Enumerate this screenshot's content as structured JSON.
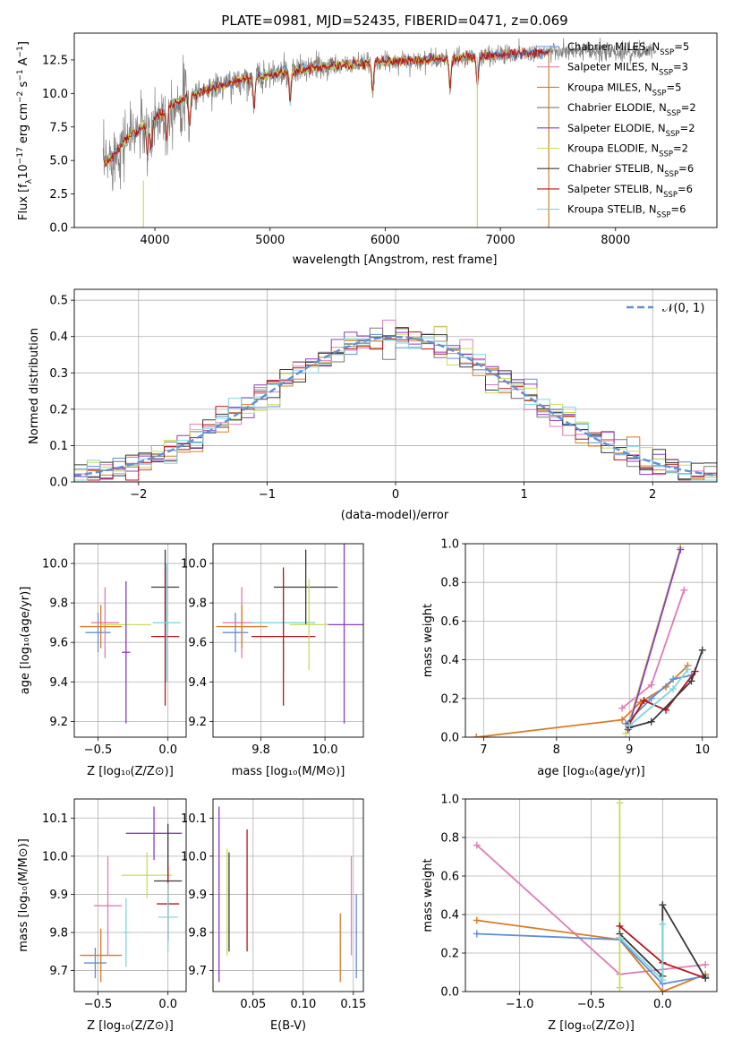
{
  "colors": {
    "chabrier_miles": "#5f8fd6",
    "salpeter_miles": "#e07cb8",
    "kroupa_miles": "#d97b27",
    "chabrier_elodie": "#7a7a7a",
    "salpeter_elodie": "#8e3bc3",
    "kroupa_elodie": "#c8dc5a",
    "chabrier_stelib": "#3a3a3a",
    "salpeter_stelib": "#b3171c",
    "kroupa_stelib": "#7fd6dd",
    "normal": "#5f8fd6",
    "grid": "#b0b0b0"
  },
  "chart_data": [
    {
      "id": "spectrum",
      "type": "line",
      "title": "PLATE=0981, MJD=52435, FIBERID=0471, z=0.069",
      "xlabel": "wavelength [Angstrom, rest frame]",
      "ylabel": "Flux [f_λ 10^-17 erg cm^-2 s^-1 A^-1]",
      "xlim": [
        3300,
        8880
      ],
      "ylim": [
        0,
        14.5
      ],
      "xticks": [
        "4000",
        "5000",
        "6000",
        "7000",
        "8000"
      ],
      "yticks": [
        "0.0",
        "2.5",
        "5.0",
        "7.5",
        "10.0",
        "12.5"
      ],
      "grid": false,
      "legend_position": "top-right",
      "legend": [
        {
          "name": "Chabrier MILES",
          "n": "5"
        },
        {
          "name": "Salpeter MILES",
          "n": "3"
        },
        {
          "name": "Kroupa MILES",
          "n": "5"
        },
        {
          "name": "Chabrier ELODIE",
          "n": "2"
        },
        {
          "name": "Salpeter ELODIE",
          "n": "2"
        },
        {
          "name": "Kroupa ELODIE",
          "n": "2"
        },
        {
          "name": "Chabrier STELIB",
          "n": "6"
        },
        {
          "name": "Salpeter STELIB",
          "n": "6"
        },
        {
          "name": "Kroupa STELIB",
          "n": "6"
        }
      ],
      "continuum": {
        "x": [
          3550,
          3650,
          3750,
          3850,
          3950,
          4100,
          4300,
          4500,
          4800,
          5000,
          5300,
          5600,
          5900,
          6200,
          6500,
          6800,
          7000,
          7300,
          7420
        ],
        "y": [
          4.6,
          5.5,
          6.6,
          7.3,
          7.7,
          8.9,
          9.8,
          10.4,
          11.1,
          11.4,
          11.8,
          12.1,
          12.3,
          12.45,
          12.55,
          12.75,
          12.9,
          13.05,
          13.1
        ]
      },
      "absorption_features": [
        3934,
        3969,
        4102,
        4300,
        4861,
        5175,
        5890,
        6563,
        6800
      ],
      "data_extends_to": 8350
    },
    {
      "id": "residuals",
      "type": "line",
      "xlabel": "(data-model)/error",
      "ylabel": "Normed distribution",
      "xlim": [
        -2.5,
        2.5
      ],
      "ylim": [
        0,
        0.53
      ],
      "xticks": [
        "−2",
        "−1",
        "0",
        "1",
        "2"
      ],
      "yticks": [
        "0.0",
        "0.1",
        "0.2",
        "0.3",
        "0.4",
        "0.5"
      ],
      "grid": true,
      "legend_position": "top-right",
      "legend": [
        {
          "name": "𝒩(0, 1)"
        }
      ],
      "bin_width": 0.1,
      "histogram_envelope": {
        "x": [
          -2.5,
          -2.0,
          -1.5,
          -1.0,
          -0.5,
          0.0,
          0.5,
          1.0,
          1.5,
          2.0,
          2.5
        ],
        "y": [
          0.03,
          0.05,
          0.13,
          0.24,
          0.35,
          0.4,
          0.35,
          0.24,
          0.13,
          0.05,
          0.03
        ]
      }
    },
    {
      "id": "z-age",
      "type": "scatter",
      "xlabel": "Z [log₁₀(Z/Z⊙)]",
      "ylabel": "age  [log₁₀(age/yr)]",
      "xlim": [
        -0.67,
        0.13
      ],
      "ylim": [
        9.12,
        10.1
      ],
      "xticks": [
        "−0.5",
        "0.0"
      ],
      "yticks": [
        "9.2",
        "9.4",
        "9.6",
        "9.8",
        "10.0"
      ],
      "grid": true,
      "points": [
        {
          "model": "chabrier_miles",
          "x": -0.5,
          "y": 9.65,
          "xerr": 0.09,
          "yerr": 0.1
        },
        {
          "model": "salpeter_miles",
          "x": -0.45,
          "y": 9.7,
          "xerr": 0.1,
          "yerr": 0.18
        },
        {
          "model": "kroupa_miles",
          "x": -0.48,
          "y": 9.68,
          "xerr": 0.15,
          "yerr": 0.11
        },
        {
          "model": "kroupa_elodie",
          "x": -0.3,
          "y": 9.69,
          "xerr": 0.18,
          "yerr": 0.12
        },
        {
          "model": "salpeter_elodie",
          "x": -0.3,
          "y": 9.55,
          "xerr": 0.03,
          "yerr": 0.36
        },
        {
          "model": "chabrier_stelib",
          "x": -0.02,
          "y": 9.88,
          "xerr": 0.1,
          "yerr": 0.19
        },
        {
          "model": "salpeter_stelib",
          "x": -0.02,
          "y": 9.63,
          "xerr": 0.1,
          "yerr": 0.35
        },
        {
          "model": "kroupa_stelib",
          "x": -0.01,
          "y": 9.7,
          "xerr": 0.1,
          "yerr": 0.3
        }
      ]
    },
    {
      "id": "mass-age",
      "type": "scatter",
      "xlabel": "mass [log₁₀(M/M⊙)]",
      "ylabel": "",
      "xlim": [
        9.65,
        10.12
      ],
      "ylim": [
        9.12,
        10.1
      ],
      "xticks": [
        "9.8",
        "10.0"
      ],
      "yticks": [
        "9.2",
        "9.4",
        "9.6",
        "9.8",
        "10.0"
      ],
      "grid": true,
      "points": [
        {
          "model": "chabrier_miles",
          "x": 9.72,
          "y": 9.65,
          "xerr": 0.04,
          "yerr": 0.1
        },
        {
          "model": "salpeter_miles",
          "x": 9.74,
          "y": 9.7,
          "xerr": 0.06,
          "yerr": 0.18
        },
        {
          "model": "kroupa_miles",
          "x": 9.74,
          "y": 9.68,
          "xerr": 0.08,
          "yerr": 0.11
        },
        {
          "model": "kroupa_stelib",
          "x": 9.87,
          "y": 9.7,
          "xerr": 0.1,
          "yerr": 0.25
        },
        {
          "model": "chabrier_stelib",
          "x": 9.94,
          "y": 9.88,
          "xerr": 0.1,
          "yerr": 0.19
        },
        {
          "model": "salpeter_stelib",
          "x": 9.87,
          "y": 9.63,
          "xerr": 0.1,
          "yerr": 0.35
        },
        {
          "model": "salpeter_elodie",
          "x": 10.06,
          "y": 9.69,
          "xerr": 0.06,
          "yerr": 0.5
        },
        {
          "model": "kroupa_elodie",
          "x": 9.95,
          "y": 9.69,
          "xerr": 0.06,
          "yerr": 0.23
        }
      ]
    },
    {
      "id": "age-weight",
      "type": "line",
      "xlabel": "age  [log₁₀(age/yr)]",
      "ylabel": "mass weight",
      "xlim": [
        6.75,
        10.2
      ],
      "ylim": [
        0,
        1.0
      ],
      "xticks": [
        "7",
        "8",
        "9",
        "10"
      ],
      "yticks": [
        "0.0",
        "0.2",
        "0.4",
        "0.6",
        "0.8",
        "1.0"
      ],
      "grid": true,
      "series": [
        {
          "model": "kroupa_miles",
          "x": [
            6.9,
            8.9,
            9.15,
            9.5,
            9.8
          ],
          "y": [
            0.0,
            0.09,
            0.18,
            0.26,
            0.37
          ]
        },
        {
          "model": "salpeter_miles",
          "x": [
            8.9,
            9.3,
            9.75
          ],
          "y": [
            0.15,
            0.27,
            0.76
          ]
        },
        {
          "model": "kroupa_elodie",
          "x": [
            8.95,
            9.7
          ],
          "y": [
            0.02,
            0.98
          ]
        },
        {
          "model": "salpeter_elodie",
          "x": [
            8.98,
            9.7
          ],
          "y": [
            0.04,
            0.97
          ]
        },
        {
          "model": "chabrier_miles",
          "x": [
            8.95,
            9.3,
            9.6,
            9.85
          ],
          "y": [
            0.07,
            0.2,
            0.3,
            0.32
          ]
        },
        {
          "model": "salpeter_stelib",
          "x": [
            9.0,
            9.2,
            9.5,
            9.9
          ],
          "y": [
            0.07,
            0.19,
            0.14,
            0.34
          ]
        },
        {
          "model": "chabrier_stelib",
          "x": [
            9.0,
            9.3,
            9.85,
            10.0
          ],
          "y": [
            0.05,
            0.08,
            0.29,
            0.45
          ]
        },
        {
          "model": "kroupa_stelib",
          "x": [
            9.0,
            9.6,
            9.8
          ],
          "y": [
            0.06,
            0.25,
            0.35
          ]
        }
      ]
    },
    {
      "id": "z-mass",
      "type": "scatter",
      "xlabel": "Z [log₁₀(Z/Z⊙)]",
      "ylabel": "mass [log₁₀(M/M⊙)]",
      "xlim": [
        -0.67,
        0.13
      ],
      "ylim": [
        9.645,
        10.15
      ],
      "xticks": [
        "−0.5",
        "0.0"
      ],
      "yticks": [
        "9.7",
        "9.8",
        "9.9",
        "10.0",
        "10.1"
      ],
      "grid": true,
      "points": [
        {
          "model": "chabrier_miles",
          "x": -0.52,
          "y": 9.72,
          "xerr": 0.08,
          "yerr": 0.04
        },
        {
          "model": "salpeter_miles",
          "x": -0.43,
          "y": 9.87,
          "xerr": 0.1,
          "yerr": 0.13
        },
        {
          "model": "kroupa_miles",
          "x": -0.48,
          "y": 9.74,
          "xerr": 0.15,
          "yerr": 0.07
        },
        {
          "model": "kroupa_elodie",
          "x": -0.15,
          "y": 9.95,
          "xerr": 0.18,
          "yerr": 0.06
        },
        {
          "model": "salpeter_elodie",
          "x": -0.1,
          "y": 10.06,
          "xerr": 0.2,
          "yerr": 0.07
        },
        {
          "model": "chabrier_stelib",
          "x": 0.0,
          "y": 9.935,
          "xerr": 0.1,
          "yerr": 0.15
        },
        {
          "model": "salpeter_stelib",
          "x": 0.0,
          "y": 9.875,
          "xerr": 0.08,
          "yerr": 0.1
        },
        {
          "model": "kroupa_stelib",
          "x": 0.0,
          "y": 9.84,
          "xerr": 0.07,
          "yerr": 0.09
        },
        {
          "model": "kroupa_stelib",
          "x": -0.3,
          "y": 9.8,
          "xerr": 0.02,
          "yerr": 0.09
        }
      ]
    },
    {
      "id": "ebv-mass",
      "type": "scatter",
      "xlabel": "E(B-V)",
      "ylabel": "",
      "xlim": [
        0.01,
        0.16
      ],
      "ylim": [
        9.645,
        10.15
      ],
      "xticks": [
        "0.05",
        "0.10",
        "0.15"
      ],
      "yticks": [
        "9.7",
        "9.8",
        "9.9",
        "10.0",
        "10.1"
      ],
      "grid": true,
      "points": [
        {
          "model": "salpeter_elodie",
          "x": 0.016,
          "y": 9.9,
          "xerr": 0.0,
          "yerr": 0.23
        },
        {
          "model": "kroupa_elodie",
          "x": 0.024,
          "y": 9.88,
          "xerr": 0.0,
          "yerr": 0.14
        },
        {
          "model": "chabrier_stelib",
          "x": 0.026,
          "y": 9.88,
          "xerr": 0.0,
          "yerr": 0.13
        },
        {
          "model": "salpeter_stelib",
          "x": 0.044,
          "y": 9.91,
          "xerr": 0.0,
          "yerr": 0.16
        },
        {
          "model": "kroupa_miles",
          "x": 0.137,
          "y": 9.76,
          "xerr": 0.0,
          "yerr": 0.09
        },
        {
          "model": "salpeter_miles",
          "x": 0.148,
          "y": 9.87,
          "xerr": 0.0,
          "yerr": 0.13
        },
        {
          "model": "chabrier_miles",
          "x": 0.153,
          "y": 9.79,
          "xerr": 0.0,
          "yerr": 0.11
        }
      ]
    },
    {
      "id": "z-weight",
      "type": "line",
      "xlabel": "Z [log₁₀(Z/Z⊙)]",
      "ylabel": "mass weight",
      "xlim": [
        -1.38,
        0.38
      ],
      "ylim": [
        0,
        1.0
      ],
      "xticks": [
        "−1.0",
        "−0.5",
        "0.0"
      ],
      "yticks": [
        "0.0",
        "0.2",
        "0.4",
        "0.6",
        "0.8",
        "1.0"
      ],
      "grid": true,
      "series": [
        {
          "model": "salpeter_miles",
          "x": [
            -1.3,
            -0.3,
            0.3
          ],
          "y": [
            0.76,
            0.09,
            0.14
          ]
        },
        {
          "model": "kroupa_miles",
          "x": [
            -1.3,
            -0.3,
            0.0,
            0.3
          ],
          "y": [
            0.37,
            0.27,
            0.0,
            0.09
          ]
        },
        {
          "model": "chabrier_miles",
          "x": [
            -1.3,
            -0.3,
            0.0,
            0.3
          ],
          "y": [
            0.3,
            0.27,
            0.04,
            0.08
          ]
        },
        {
          "model": "kroupa_elodie",
          "x": [
            -0.3,
            -0.3
          ],
          "y": [
            0.98,
            0.02
          ]
        },
        {
          "model": "salpeter_stelib",
          "x": [
            -0.3,
            0.0,
            0.3
          ],
          "y": [
            0.34,
            0.15,
            0.07
          ]
        },
        {
          "model": "chabrier_stelib",
          "x": [
            -0.3,
            0.0,
            0.0,
            0.3
          ],
          "y": [
            0.3,
            0.08,
            0.45,
            0.07
          ]
        },
        {
          "model": "kroupa_stelib",
          "x": [
            -0.3,
            0.0,
            0.0
          ],
          "y": [
            0.28,
            0.06,
            0.35
          ]
        }
      ]
    }
  ]
}
